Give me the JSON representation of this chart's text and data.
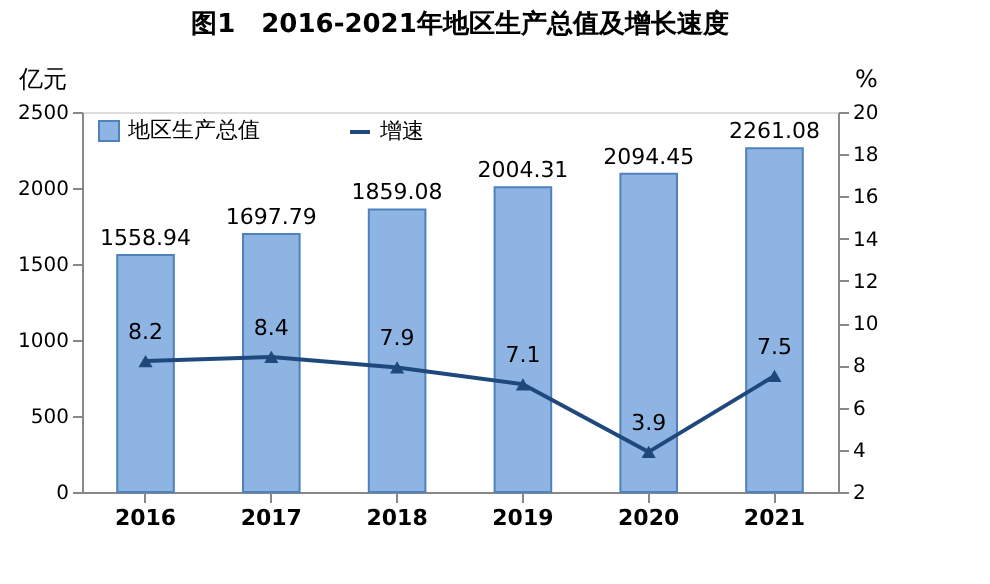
{
  "chart_data": {
    "type": "bar",
    "title": "图1　2016-2021年地区生产总值及增长速度",
    "ylabel": "亿元",
    "y2label": "%",
    "categories": [
      "2016",
      "2017",
      "2018",
      "2019",
      "2020",
      "2021"
    ],
    "series": [
      {
        "name": "地区生产总值",
        "type": "bar",
        "color": "#8eb4e3",
        "values": [
          1558.94,
          1697.79,
          1859.08,
          2004.31,
          2094.45,
          2261.08
        ]
      },
      {
        "name": "增速",
        "type": "line",
        "axis": "y2",
        "color": "#1f497d",
        "values": [
          8.2,
          8.4,
          7.9,
          7.1,
          3.9,
          7.5
        ]
      }
    ],
    "ylim": [
      0,
      2500
    ],
    "yticks": [
      0,
      500,
      1000,
      1500,
      2000,
      2500
    ],
    "y2lim": [
      2,
      20
    ],
    "y2ticks": [
      2,
      4,
      6,
      8,
      10,
      12,
      14,
      16,
      18,
      20
    ],
    "data_labels": true,
    "marker": "triangle",
    "legend": "top left",
    "grid": false
  }
}
